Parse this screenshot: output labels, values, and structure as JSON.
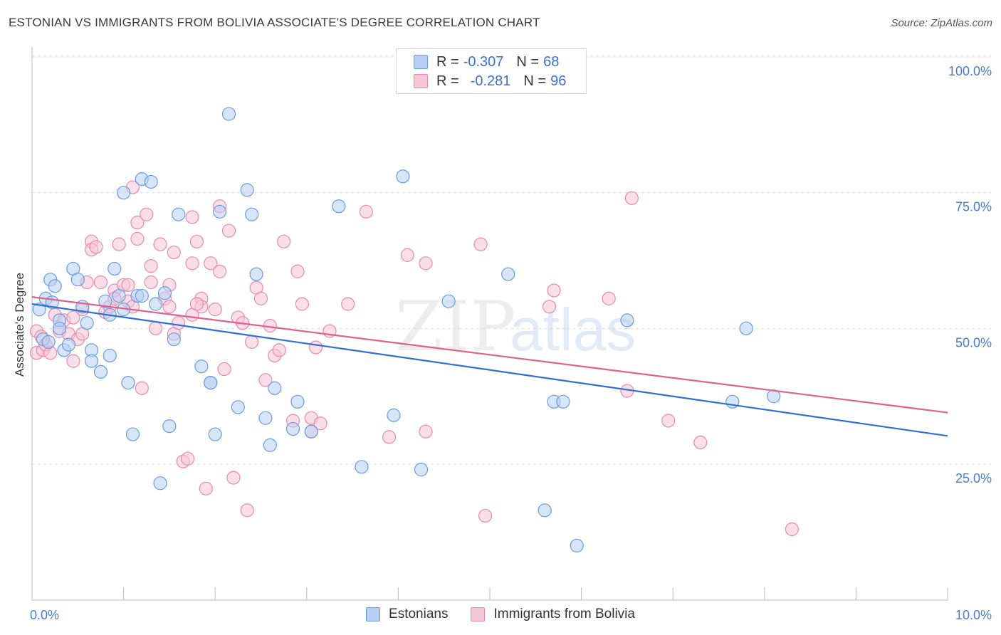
{
  "title": "ESTONIAN VS IMMIGRANTS FROM BOLIVIA ASSOCIATE'S DEGREE CORRELATION CHART",
  "source": "Source: ZipAtlas.com",
  "watermark": {
    "zip": "ZIP",
    "atlas": "atlas"
  },
  "colors": {
    "blue": "#6a9be0",
    "blue_fill": "#b7cff2",
    "pink": "#e889ad",
    "pink_fill": "#f6c5d6",
    "blue_line": "#2f6fd3",
    "pink_line": "#e0608f",
    "accent_text": "#3d6fd0"
  },
  "legend": {
    "rows": [
      {
        "r_label": "R =",
        "r_value": "-0.307",
        "n_label": "N =",
        "n_value": "68"
      },
      {
        "r_label": "R =",
        "r_value": "-0.281",
        "n_label": "N =",
        "n_value": "96"
      }
    ]
  },
  "bottom_legend": [
    "Estonians",
    "Immigrants from Bolivia"
  ],
  "chart_data": {
    "type": "scatter",
    "title": "ESTONIAN VS IMMIGRANTS FROM BOLIVIA ASSOCIATE'S DEGREE CORRELATION CHART",
    "xlabel": "",
    "ylabel": "Associate's Degree",
    "xlim": [
      0,
      10
    ],
    "ylim": [
      0,
      105
    ],
    "x_tick_labels": [
      "0.0%",
      "10.0%"
    ],
    "y_ticks": [
      25,
      50,
      75,
      100
    ],
    "y_tick_labels": [
      "25.0%",
      "50.0%",
      "75.0%",
      "100.0%"
    ],
    "grid": "horizontal dashed",
    "legend_position": "top-center",
    "series": [
      {
        "name": "Estonians",
        "color": "#6a9be0",
        "trend": {
          "x": [
            0,
            10
          ],
          "y": [
            54.5,
            30.2
          ]
        },
        "points": [
          [
            0.08,
            53.5
          ],
          [
            0.15,
            55.5
          ],
          [
            0.22,
            54.8
          ],
          [
            0.2,
            59
          ],
          [
            0.25,
            57.8
          ],
          [
            0.3,
            51.5
          ],
          [
            0.35,
            46
          ],
          [
            0.4,
            47
          ],
          [
            0.45,
            61
          ],
          [
            0.5,
            59
          ],
          [
            0.55,
            54
          ],
          [
            0.6,
            51
          ],
          [
            0.65,
            46
          ],
          [
            0.65,
            44
          ],
          [
            0.75,
            42
          ],
          [
            0.8,
            55
          ],
          [
            0.85,
            52.5
          ],
          [
            0.85,
            45
          ],
          [
            0.9,
            61
          ],
          [
            0.95,
            56
          ],
          [
            1.0,
            53.5
          ],
          [
            1.0,
            75
          ],
          [
            1.05,
            40
          ],
          [
            1.1,
            30.5
          ],
          [
            1.15,
            56
          ],
          [
            1.2,
            56
          ],
          [
            1.2,
            77.5
          ],
          [
            1.3,
            77
          ],
          [
            1.35,
            54.5
          ],
          [
            1.4,
            21.5
          ],
          [
            1.45,
            56.5
          ],
          [
            1.5,
            32
          ],
          [
            1.55,
            48
          ],
          [
            1.6,
            71
          ],
          [
            1.85,
            43
          ],
          [
            1.95,
            40
          ],
          [
            1.95,
            40
          ],
          [
            2.0,
            30.5
          ],
          [
            2.05,
            71.5
          ],
          [
            2.15,
            89.5
          ],
          [
            2.25,
            35.5
          ],
          [
            2.35,
            75.5
          ],
          [
            2.4,
            71
          ],
          [
            2.45,
            60
          ],
          [
            2.55,
            33.5
          ],
          [
            2.6,
            28.5
          ],
          [
            2.65,
            39
          ],
          [
            2.85,
            31.5
          ],
          [
            2.9,
            36.5
          ],
          [
            3.05,
            31
          ],
          [
            3.35,
            72.5
          ],
          [
            3.6,
            24.5
          ],
          [
            3.95,
            34
          ],
          [
            4.05,
            78
          ],
          [
            4.25,
            24
          ],
          [
            4.55,
            55
          ],
          [
            5.2,
            60
          ],
          [
            5.6,
            16.5
          ],
          [
            5.7,
            36.5
          ],
          [
            5.8,
            36.5
          ],
          [
            5.95,
            10
          ],
          [
            6.5,
            51.5
          ],
          [
            7.8,
            50
          ],
          [
            7.65,
            36.5
          ],
          [
            8.1,
            37.5
          ],
          [
            0.12,
            48
          ],
          [
            0.3,
            50
          ],
          [
            0.18,
            47.5
          ]
        ]
      },
      {
        "name": "Immigrants from Bolivia",
        "color": "#e889ad",
        "trend": {
          "x": [
            0,
            10
          ],
          "y": [
            55.8,
            34.5
          ]
        },
        "points": [
          [
            0.05,
            49.5
          ],
          [
            0.05,
            45.5
          ],
          [
            0.1,
            48.5
          ],
          [
            0.12,
            46
          ],
          [
            0.15,
            47
          ],
          [
            0.2,
            45.5
          ],
          [
            0.25,
            52.5
          ],
          [
            0.3,
            49.5
          ],
          [
            0.35,
            51.5
          ],
          [
            0.4,
            49
          ],
          [
            0.45,
            52
          ],
          [
            0.45,
            44
          ],
          [
            0.5,
            48
          ],
          [
            0.55,
            53.5
          ],
          [
            0.55,
            49
          ],
          [
            0.6,
            58.5
          ],
          [
            0.65,
            66
          ],
          [
            0.65,
            64.5
          ],
          [
            0.7,
            65
          ],
          [
            0.75,
            58.5
          ],
          [
            0.8,
            53
          ],
          [
            0.85,
            54
          ],
          [
            0.9,
            57
          ],
          [
            0.9,
            55.5
          ],
          [
            0.95,
            65.5
          ],
          [
            1.0,
            58
          ],
          [
            1.05,
            58
          ],
          [
            1.05,
            55
          ],
          [
            1.1,
            54
          ],
          [
            1.1,
            76
          ],
          [
            1.15,
            69.5
          ],
          [
            1.15,
            66.5
          ],
          [
            1.2,
            39
          ],
          [
            1.25,
            71
          ],
          [
            1.3,
            61.5
          ],
          [
            1.3,
            58.5
          ],
          [
            1.35,
            50
          ],
          [
            1.4,
            65.5
          ],
          [
            1.45,
            55.5
          ],
          [
            1.5,
            58
          ],
          [
            1.5,
            54
          ],
          [
            1.55,
            49
          ],
          [
            1.55,
            64
          ],
          [
            1.6,
            51
          ],
          [
            1.65,
            25.5
          ],
          [
            1.7,
            26
          ],
          [
            1.75,
            52.5
          ],
          [
            1.75,
            70.5
          ],
          [
            1.75,
            62
          ],
          [
            1.8,
            66
          ],
          [
            1.85,
            55.5
          ],
          [
            1.85,
            54
          ],
          [
            1.9,
            20.5
          ],
          [
            1.95,
            62
          ],
          [
            2.0,
            53.5
          ],
          [
            2.05,
            60.5
          ],
          [
            2.05,
            72.5
          ],
          [
            2.1,
            42.5
          ],
          [
            2.15,
            68
          ],
          [
            2.2,
            22.5
          ],
          [
            2.25,
            52
          ],
          [
            2.3,
            51
          ],
          [
            2.35,
            16.5
          ],
          [
            2.4,
            47.5
          ],
          [
            2.45,
            57.5
          ],
          [
            2.5,
            55.5
          ],
          [
            2.55,
            40.5
          ],
          [
            2.6,
            50.5
          ],
          [
            2.65,
            45
          ],
          [
            2.7,
            46
          ],
          [
            2.75,
            66
          ],
          [
            2.85,
            33
          ],
          [
            2.9,
            60.5
          ],
          [
            2.95,
            54.5
          ],
          [
            3.05,
            31
          ],
          [
            3.05,
            33.5
          ],
          [
            3.1,
            46.5
          ],
          [
            3.15,
            32.5
          ],
          [
            3.25,
            49.5
          ],
          [
            3.45,
            54.5
          ],
          [
            3.65,
            71.5
          ],
          [
            3.9,
            30
          ],
          [
            4.1,
            63.5
          ],
          [
            4.3,
            31
          ],
          [
            4.3,
            62
          ],
          [
            4.9,
            65.5
          ],
          [
            4.95,
            15.5
          ],
          [
            5.65,
            54
          ],
          [
            5.7,
            57
          ],
          [
            6.3,
            55.5
          ],
          [
            6.5,
            38.5
          ],
          [
            6.55,
            74
          ],
          [
            6.95,
            33
          ],
          [
            7.3,
            29
          ],
          [
            8.3,
            13
          ],
          [
            1.8,
            54.5
          ]
        ]
      }
    ]
  }
}
